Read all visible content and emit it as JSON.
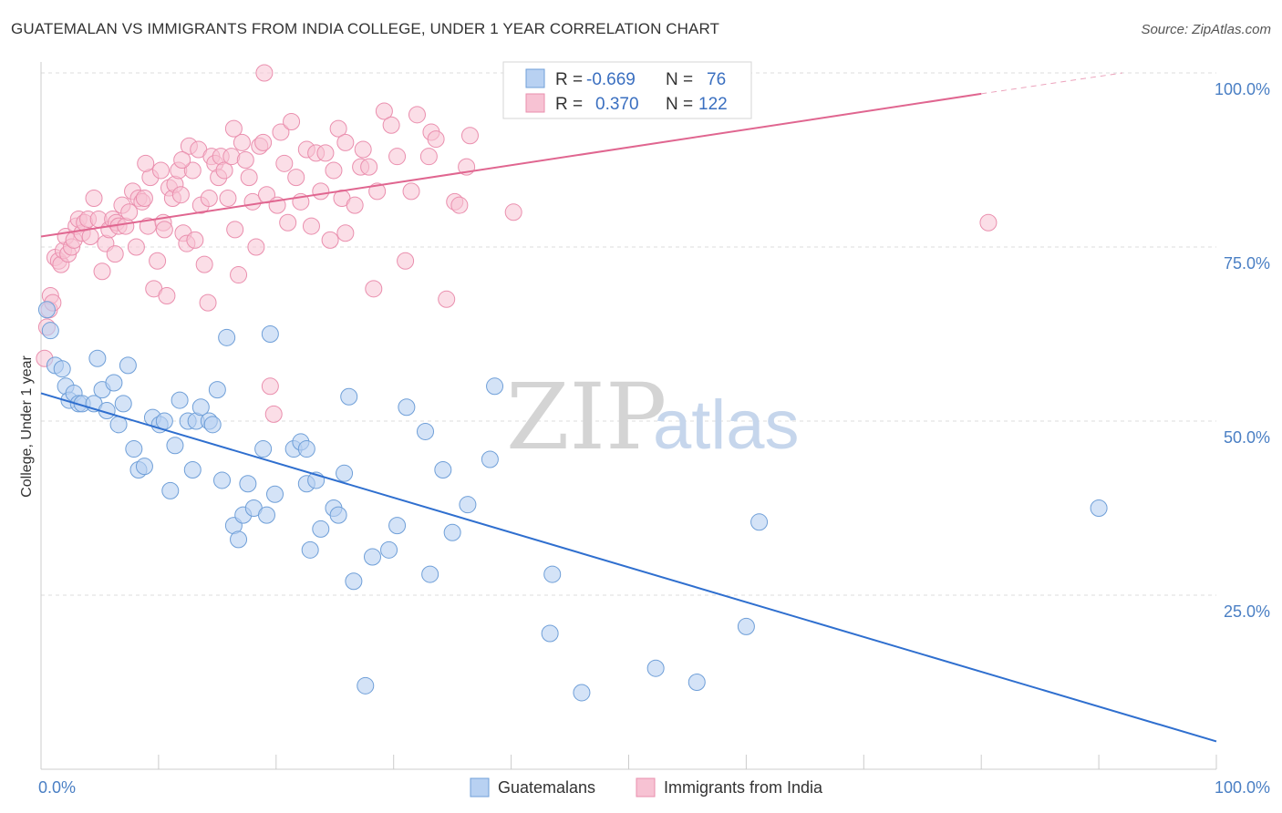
{
  "header": {
    "title": "GUATEMALAN VS IMMIGRANTS FROM INDIA COLLEGE, UNDER 1 YEAR CORRELATION CHART",
    "source": "Source: ZipAtlas.com"
  },
  "legend": {
    "rows": [
      {
        "r_label": "R =",
        "r_value": "-0.669",
        "n_label": "N =",
        "n_value": "76"
      },
      {
        "r_label": "R =",
        "r_value": "0.370",
        "n_label": "N =",
        "n_value": "122"
      }
    ]
  },
  "watermark": {
    "zip": "ZIP",
    "atlas": "atlas"
  },
  "colors": {
    "blue_fill": "#b8d1f2",
    "blue_stroke": "#6f9fd8",
    "blue_line": "#2f6fcf",
    "pink_fill": "#f7c2d3",
    "pink_stroke": "#ea8fae",
    "pink_line": "#e06690",
    "grid": "#dddddd",
    "axis_text": "#4a7fc4"
  },
  "chart_data": {
    "type": "scatter",
    "title": "GUATEMALAN VS IMMIGRANTS FROM INDIA COLLEGE, UNDER 1 YEAR CORRELATION CHART",
    "xlabel": "",
    "ylabel": "College, Under 1 year",
    "xlim": [
      0,
      100
    ],
    "ylim": [
      0,
      100
    ],
    "x_tick_labels": [
      "0.0%",
      "100.0%"
    ],
    "y_tick_labels": [
      "25.0%",
      "50.0%",
      "75.0%",
      "100.0%"
    ],
    "y_ticks": [
      25,
      50,
      75,
      100
    ],
    "grid": true,
    "legend_position": "top-center",
    "series": [
      {
        "name": "Guatemalans",
        "color": "#b8d1f2",
        "trend": {
          "x": [
            0,
            100
          ],
          "y": [
            54,
            4
          ]
        },
        "points": [
          [
            0.5,
            66
          ],
          [
            0.8,
            63
          ],
          [
            1.2,
            58
          ],
          [
            1.8,
            57.5
          ],
          [
            2.1,
            55
          ],
          [
            2.4,
            53
          ],
          [
            2.8,
            54
          ],
          [
            3.2,
            52.5
          ],
          [
            3.5,
            52.5
          ],
          [
            4.5,
            52.5
          ],
          [
            4.8,
            59
          ],
          [
            5.2,
            54.5
          ],
          [
            5.6,
            51.5
          ],
          [
            6.2,
            55.5
          ],
          [
            6.6,
            49.5
          ],
          [
            7.0,
            52.5
          ],
          [
            7.4,
            58
          ],
          [
            7.9,
            46
          ],
          [
            8.3,
            43
          ],
          [
            8.8,
            43.5
          ],
          [
            9.5,
            50.5
          ],
          [
            10.1,
            49.5
          ],
          [
            10.5,
            50
          ],
          [
            11.0,
            40
          ],
          [
            11.4,
            46.5
          ],
          [
            11.8,
            53
          ],
          [
            12.5,
            50
          ],
          [
            12.9,
            43
          ],
          [
            13.2,
            50
          ],
          [
            13.6,
            52
          ],
          [
            14.3,
            50
          ],
          [
            14.6,
            49.5
          ],
          [
            15.0,
            54.5
          ],
          [
            15.4,
            41.5
          ],
          [
            15.8,
            62
          ],
          [
            16.4,
            35
          ],
          [
            16.8,
            33
          ],
          [
            17.2,
            36.5
          ],
          [
            17.6,
            41
          ],
          [
            18.1,
            37.5
          ],
          [
            18.9,
            46
          ],
          [
            19.2,
            36.5
          ],
          [
            19.5,
            62.5
          ],
          [
            19.9,
            39.5
          ],
          [
            21.5,
            46
          ],
          [
            22.1,
            47
          ],
          [
            22.6,
            46
          ],
          [
            22.9,
            31.5
          ],
          [
            22.6,
            41
          ],
          [
            23.4,
            41.5
          ],
          [
            23.8,
            34.5
          ],
          [
            24.9,
            37.5
          ],
          [
            25.3,
            36.5
          ],
          [
            25.8,
            42.5
          ],
          [
            26.2,
            53.5
          ],
          [
            26.6,
            27
          ],
          [
            27.6,
            12
          ],
          [
            28.2,
            30.5
          ],
          [
            29.6,
            31.5
          ],
          [
            30.3,
            35
          ],
          [
            31.1,
            52
          ],
          [
            32.7,
            48.5
          ],
          [
            33.1,
            28
          ],
          [
            34.2,
            43
          ],
          [
            35.0,
            34
          ],
          [
            36.3,
            38
          ],
          [
            38.2,
            44.5
          ],
          [
            38.6,
            55
          ],
          [
            43.5,
            28
          ],
          [
            43.3,
            19.5
          ],
          [
            46.0,
            11
          ],
          [
            52.3,
            14.5
          ],
          [
            55.8,
            12.5
          ],
          [
            60.0,
            20.5
          ],
          [
            61.1,
            35.5
          ],
          [
            90.0,
            37.5
          ]
        ]
      },
      {
        "name": "Immigrants from India",
        "color": "#f7c2d3",
        "trend": {
          "x": [
            0,
            80,
            92
          ],
          "y": [
            76.5,
            97,
            100
          ]
        },
        "points": [
          [
            0.3,
            59
          ],
          [
            0.5,
            63.5
          ],
          [
            0.7,
            66
          ],
          [
            0.8,
            68
          ],
          [
            1.0,
            67
          ],
          [
            1.2,
            73.5
          ],
          [
            1.5,
            73
          ],
          [
            1.7,
            72.5
          ],
          [
            1.9,
            74.5
          ],
          [
            2.1,
            76.5
          ],
          [
            2.3,
            74
          ],
          [
            2.6,
            75
          ],
          [
            2.8,
            76
          ],
          [
            3.0,
            78
          ],
          [
            3.2,
            79
          ],
          [
            3.5,
            77
          ],
          [
            3.7,
            78.5
          ],
          [
            4.0,
            79
          ],
          [
            4.2,
            76.5
          ],
          [
            4.5,
            82
          ],
          [
            4.9,
            79
          ],
          [
            5.2,
            71.5
          ],
          [
            5.5,
            75.5
          ],
          [
            5.8,
            77.5
          ],
          [
            6.1,
            79
          ],
          [
            6.4,
            78.5
          ],
          [
            6.6,
            78
          ],
          [
            6.9,
            81
          ],
          [
            7.2,
            78
          ],
          [
            7.5,
            80
          ],
          [
            7.8,
            83
          ],
          [
            8.1,
            75
          ],
          [
            8.3,
            82
          ],
          [
            8.6,
            81.5
          ],
          [
            8.8,
            82
          ],
          [
            9.1,
            78
          ],
          [
            9.3,
            85
          ],
          [
            9.6,
            69
          ],
          [
            9.9,
            73
          ],
          [
            10.2,
            86
          ],
          [
            10.4,
            78.5
          ],
          [
            10.7,
            68
          ],
          [
            10.9,
            83.5
          ],
          [
            11.2,
            82
          ],
          [
            11.4,
            84
          ],
          [
            11.7,
            86
          ],
          [
            11.9,
            82.5
          ],
          [
            12.1,
            77
          ],
          [
            12.4,
            75.5
          ],
          [
            12.6,
            89.5
          ],
          [
            12.9,
            86
          ],
          [
            13.1,
            76
          ],
          [
            13.4,
            89
          ],
          [
            13.6,
            81
          ],
          [
            13.9,
            72.5
          ],
          [
            14.2,
            67
          ],
          [
            14.5,
            88
          ],
          [
            14.8,
            87
          ],
          [
            15.1,
            85
          ],
          [
            15.3,
            88
          ],
          [
            15.6,
            86
          ],
          [
            15.9,
            82
          ],
          [
            16.2,
            88
          ],
          [
            16.5,
            77.5
          ],
          [
            16.8,
            71
          ],
          [
            17.1,
            90
          ],
          [
            17.4,
            87.5
          ],
          [
            17.7,
            85
          ],
          [
            18.0,
            81.5
          ],
          [
            18.3,
            75
          ],
          [
            18.6,
            89.5
          ],
          [
            18.9,
            90
          ],
          [
            19.2,
            82.5
          ],
          [
            19.5,
            55
          ],
          [
            19.8,
            51
          ],
          [
            20.1,
            81
          ],
          [
            20.4,
            91.5
          ],
          [
            20.7,
            87
          ],
          [
            21.0,
            78.5
          ],
          [
            21.3,
            93
          ],
          [
            21.7,
            85
          ],
          [
            22.1,
            81.5
          ],
          [
            22.6,
            89
          ],
          [
            23.0,
            78
          ],
          [
            23.4,
            88.5
          ],
          [
            23.8,
            83
          ],
          [
            24.2,
            88.5
          ],
          [
            24.6,
            76
          ],
          [
            24.9,
            86
          ],
          [
            25.3,
            92
          ],
          [
            25.6,
            82
          ],
          [
            25.9,
            90
          ],
          [
            26.7,
            81
          ],
          [
            27.2,
            86.5
          ],
          [
            27.9,
            86.5
          ],
          [
            28.3,
            69
          ],
          [
            28.6,
            83
          ],
          [
            29.2,
            94.5
          ],
          [
            29.8,
            92.5
          ],
          [
            30.3,
            88
          ],
          [
            31.0,
            73
          ],
          [
            32.0,
            94
          ],
          [
            33.2,
            91.5
          ],
          [
            33.6,
            90.5
          ],
          [
            33.0,
            88
          ],
          [
            34.5,
            67.5
          ],
          [
            35.2,
            81.5
          ],
          [
            35.6,
            81
          ],
          [
            36.2,
            86.5
          ],
          [
            36.5,
            91
          ],
          [
            40.2,
            80
          ],
          [
            19.0,
            100
          ],
          [
            80.6,
            78.5
          ],
          [
            10.5,
            77.5
          ],
          [
            12.0,
            87.5
          ],
          [
            14.3,
            82
          ],
          [
            16.4,
            92
          ],
          [
            25.9,
            77
          ],
          [
            27.4,
            89
          ],
          [
            31.5,
            83
          ],
          [
            8.9,
            87
          ],
          [
            6.3,
            74
          ]
        ]
      }
    ]
  },
  "bottom_legend": [
    {
      "label": "Guatemalans"
    },
    {
      "label": "Immigrants from India"
    }
  ]
}
